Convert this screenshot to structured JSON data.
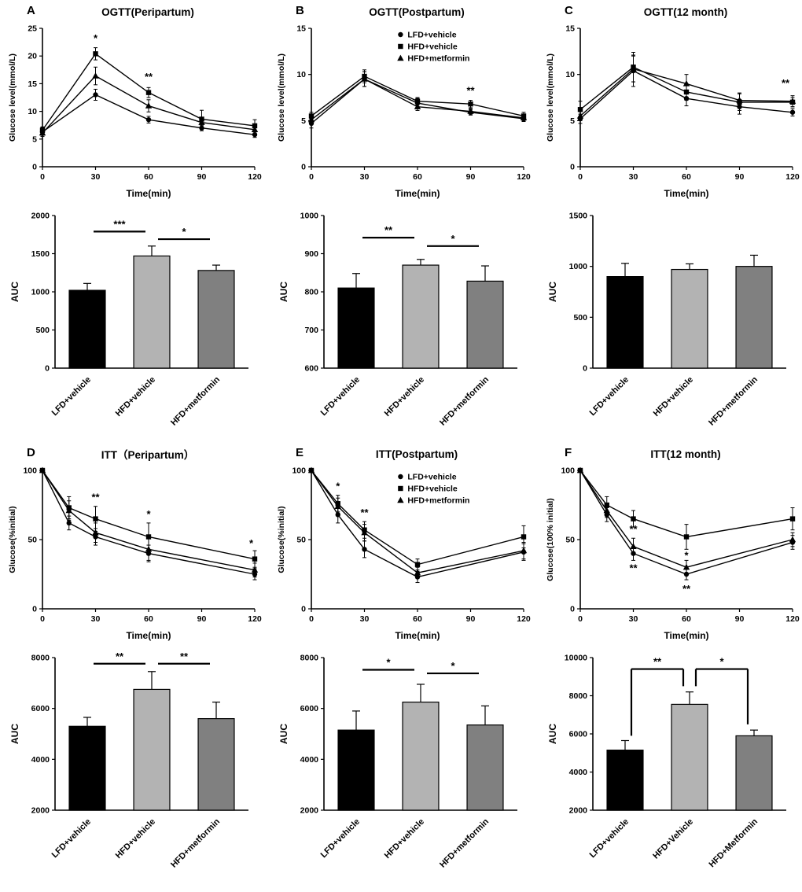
{
  "figure": {
    "background": "#ffffff",
    "line_color": "#000000"
  },
  "bar_colors": [
    "#000000",
    "#b3b3b3",
    "#808080"
  ],
  "chart_data": [
    {
      "panel": "A",
      "title": "OGTT(Peripartum)",
      "line": {
        "type": "line",
        "x": [
          0,
          30,
          60,
          90,
          120
        ],
        "xlim": [
          0,
          120
        ],
        "xticks": [
          0,
          30,
          60,
          90,
          120
        ],
        "xlabel": "Time(min)",
        "ylabel": "Glucose level(mmol/L)",
        "ylim": [
          0,
          25
        ],
        "yticks": [
          0,
          5,
          10,
          15,
          20,
          25
        ],
        "legend": false,
        "series": [
          {
            "name": "LFD+vehicle",
            "marker": "circle",
            "values": [
              6.3,
              13.0,
              8.5,
              7.0,
              5.8
            ],
            "errors": [
              0.8,
              1.0,
              0.6,
              0.5,
              0.5
            ]
          },
          {
            "name": "HFD+vehicle",
            "marker": "square",
            "values": [
              6.6,
              20.4,
              13.4,
              8.6,
              7.4
            ],
            "errors": [
              0.6,
              1.1,
              0.9,
              1.6,
              1.1
            ]
          },
          {
            "name": "HFD+metformin",
            "marker": "triangle",
            "values": [
              6.1,
              16.4,
              11.0,
              8.0,
              6.7
            ],
            "errors": [
              0.6,
              1.6,
              1.1,
              0.9,
              0.8
            ]
          }
        ],
        "annotations": [
          {
            "x": 30,
            "y": 22.6,
            "text": "*"
          },
          {
            "x": 60,
            "y": 15.6,
            "text": "**"
          }
        ]
      },
      "bar": {
        "type": "bar",
        "categories": [
          "LFD+vehicle",
          "HFD+vehicle",
          "HFD+metformin"
        ],
        "values": [
          1020,
          1470,
          1280
        ],
        "errors": [
          90,
          130,
          70
        ],
        "ylabel": "AUC",
        "ylim": [
          0,
          2000
        ],
        "yticks": [
          0,
          500,
          1000,
          1500,
          2000
        ],
        "sig": [
          {
            "from": 0,
            "to": 1,
            "y": 1790,
            "label": "***"
          },
          {
            "from": 1,
            "to": 2,
            "y": 1690,
            "label": "*"
          }
        ]
      }
    },
    {
      "panel": "B",
      "title": "OGTT(Postpartum)",
      "line": {
        "type": "line",
        "x": [
          0,
          30,
          60,
          90,
          120
        ],
        "xlim": [
          0,
          120
        ],
        "xticks": [
          0,
          30,
          60,
          90,
          120
        ],
        "xlabel": "Time(min)",
        "ylabel": "Glucose level(mmol/L)",
        "ylim": [
          0,
          15
        ],
        "yticks": [
          0,
          5,
          10,
          15
        ],
        "legend": true,
        "series": [
          {
            "name": "LFD+vehicle",
            "marker": "circle",
            "values": [
              4.7,
              9.5,
              6.9,
              5.9,
              5.2
            ],
            "errors": [
              0.5,
              0.8,
              0.5,
              0.3,
              0.3
            ]
          },
          {
            "name": "HFD+vehicle",
            "marker": "square",
            "values": [
              5.5,
              9.8,
              7.1,
              6.8,
              5.5
            ],
            "errors": [
              0.4,
              0.7,
              0.4,
              0.4,
              0.4
            ]
          },
          {
            "name": "HFD+metformin",
            "marker": "triangle",
            "values": [
              5.1,
              9.5,
              6.5,
              6.0,
              5.3
            ],
            "errors": [
              0.4,
              0.8,
              0.4,
              0.3,
              0.3
            ]
          }
        ],
        "annotations": [
          {
            "x": 90,
            "y": 7.9,
            "text": "**"
          }
        ]
      },
      "bar": {
        "type": "bar",
        "categories": [
          "LFD+vehicle",
          "HFD+vehicle",
          "HFD+metformin"
        ],
        "values": [
          810,
          870,
          828
        ],
        "errors": [
          38,
          15,
          40
        ],
        "ylabel": "AUC",
        "ylim": [
          600,
          1000
        ],
        "yticks": [
          600,
          700,
          800,
          900,
          1000
        ],
        "sig": [
          {
            "from": 0,
            "to": 1,
            "y": 942,
            "label": "**"
          },
          {
            "from": 1,
            "to": 2,
            "y": 920,
            "label": "*"
          }
        ]
      }
    },
    {
      "panel": "C",
      "title": "OGTT(12 month)",
      "line": {
        "type": "line",
        "x": [
          0,
          30,
          60,
          90,
          120
        ],
        "xlim": [
          0,
          120
        ],
        "xticks": [
          0,
          30,
          60,
          90,
          120
        ],
        "xlabel": "Time(min)",
        "ylabel": "Glucose level(mmol/L)",
        "ylim": [
          0,
          15
        ],
        "yticks": [
          0,
          5,
          10,
          15
        ],
        "legend": false,
        "series": [
          {
            "name": "LFD+vehicle",
            "marker": "circle",
            "values": [
              5.2,
              10.4,
              7.4,
              6.5,
              5.9
            ],
            "errors": [
              0.5,
              1.7,
              0.8,
              0.8,
              0.4
            ]
          },
          {
            "name": "HFD+vehicle",
            "marker": "square",
            "values": [
              6.2,
              10.8,
              8.1,
              7.0,
              7.0
            ],
            "errors": [
              0.9,
              1.6,
              0.9,
              0.9,
              0.5
            ]
          },
          {
            "name": "HFD+metformin",
            "marker": "triangle",
            "values": [
              5.5,
              10.6,
              9.0,
              7.2,
              7.1
            ],
            "errors": [
              0.5,
              1.4,
              1.0,
              0.8,
              0.6
            ]
          }
        ],
        "annotations": [
          {
            "x": 116,
            "y": 8.7,
            "text": "**"
          }
        ]
      },
      "bar": {
        "type": "bar",
        "categories": [
          "LFD+vehicle",
          "HFD+vehicle",
          "HFD+metformin"
        ],
        "values": [
          900,
          970,
          1000
        ],
        "errors": [
          130,
          55,
          110
        ],
        "ylabel": "AUC",
        "ylim": [
          0,
          1500
        ],
        "yticks": [
          0,
          500,
          1000,
          1500
        ],
        "sig": []
      }
    },
    {
      "panel": "D",
      "title": "ITT（Peripartum）",
      "line": {
        "type": "line",
        "x": [
          0,
          15,
          30,
          60,
          120
        ],
        "xlim": [
          0,
          120
        ],
        "xticks": [
          0,
          30,
          60,
          90,
          120
        ],
        "xlabel": "Time(min)",
        "ylabel": "Glucose(%initial)",
        "ylim": [
          0,
          100
        ],
        "yticks": [
          0,
          50,
          100
        ],
        "legend": false,
        "series": [
          {
            "name": "LFD+vehicle",
            "marker": "circle",
            "values": [
              100,
              62,
              52,
              40,
              25
            ],
            "errors": [
              0,
              5,
              6,
              6,
              4
            ]
          },
          {
            "name": "HFD+vehicle",
            "marker": "square",
            "values": [
              100,
              73,
              65,
              52,
              36
            ],
            "errors": [
              0,
              8,
              9,
              10,
              6
            ]
          },
          {
            "name": "HFD+metformin",
            "marker": "triangle",
            "values": [
              100,
              71,
              55,
              43,
              28
            ],
            "errors": [
              0,
              7,
              7,
              8,
              5
            ]
          }
        ],
        "annotations": [
          {
            "x": 30,
            "y": 78,
            "text": "**"
          },
          {
            "x": 60,
            "y": 66,
            "text": "*"
          },
          {
            "x": 118,
            "y": 45,
            "text": "*"
          }
        ]
      },
      "bar": {
        "type": "bar",
        "categories": [
          "LFD+vehicle",
          "HFD+vehicle",
          "HFD+metformin"
        ],
        "values": [
          5300,
          6750,
          5600
        ],
        "errors": [
          350,
          700,
          650
        ],
        "ylabel": "AUC",
        "ylim": [
          2000,
          8000
        ],
        "yticks": [
          2000,
          4000,
          6000,
          8000
        ],
        "sig": [
          {
            "from": 0,
            "to": 1,
            "y": 7760,
            "label": "**"
          },
          {
            "from": 1,
            "to": 2,
            "y": 7760,
            "label": "**"
          }
        ]
      }
    },
    {
      "panel": "E",
      "title": "ITT(Postpartum)",
      "line": {
        "type": "line",
        "x": [
          0,
          15,
          30,
          60,
          120
        ],
        "xlim": [
          0,
          120
        ],
        "xticks": [
          0,
          30,
          60,
          90,
          120
        ],
        "xlabel": "Time(min)",
        "ylabel": "Glucose(%initial)",
        "ylim": [
          0,
          100
        ],
        "yticks": [
          0,
          50,
          100
        ],
        "legend": true,
        "series": [
          {
            "name": "LFD+vehicle",
            "marker": "circle",
            "values": [
              100,
              68,
              43,
              23,
              41
            ],
            "errors": [
              0,
              6,
              6,
              4,
              6
            ]
          },
          {
            "name": "HFD+vehicle",
            "marker": "square",
            "values": [
              100,
              76,
              57,
              32,
              52
            ],
            "errors": [
              0,
              6,
              6,
              4,
              8
            ]
          },
          {
            "name": "HFD+metformin",
            "marker": "triangle",
            "values": [
              100,
              74,
              55,
              26,
              42
            ],
            "errors": [
              0,
              6,
              6,
              4,
              6
            ]
          }
        ],
        "annotations": [
          {
            "x": 15,
            "y": 86,
            "text": "*"
          },
          {
            "x": 30,
            "y": 67,
            "text": "**"
          }
        ]
      },
      "bar": {
        "type": "bar",
        "categories": [
          "LFD+vehicle",
          "HFD+vehicle",
          "HFD+metformin"
        ],
        "values": [
          5150,
          6250,
          5350
        ],
        "errors": [
          750,
          700,
          750
        ],
        "ylabel": "AUC",
        "ylim": [
          2000,
          8000
        ],
        "yticks": [
          2000,
          4000,
          6000,
          8000
        ],
        "sig": [
          {
            "from": 0,
            "to": 1,
            "y": 7520,
            "label": "*"
          },
          {
            "from": 1,
            "to": 2,
            "y": 7380,
            "label": "*"
          }
        ]
      }
    },
    {
      "panel": "F",
      "title": "ITT(12 month)",
      "line": {
        "type": "line",
        "x": [
          0,
          15,
          30,
          60,
          120
        ],
        "xlim": [
          0,
          120
        ],
        "xticks": [
          0,
          30,
          60,
          90,
          120
        ],
        "xlabel": "Time(min)",
        "ylabel": "Glucose(100% initial)",
        "ylim": [
          0,
          100
        ],
        "yticks": [
          0,
          50,
          100
        ],
        "legend": false,
        "series": [
          {
            "name": "LFD+vehicle",
            "marker": "circle",
            "values": [
              100,
              68,
              40,
              25,
              48
            ],
            "errors": [
              0,
              5,
              5,
              4,
              5
            ]
          },
          {
            "name": "HFD+vehicle",
            "marker": "square",
            "values": [
              100,
              75,
              65,
              52,
              65
            ],
            "errors": [
              0,
              6,
              6,
              9,
              8
            ]
          },
          {
            "name": "HFD+metformin",
            "marker": "triangle",
            "values": [
              100,
              71,
              45,
              30,
              50
            ],
            "errors": [
              0,
              5,
              6,
              5,
              5
            ]
          }
        ],
        "annotations": [
          {
            "x": 30,
            "y": 55,
            "text": "**"
          },
          {
            "x": 30,
            "y": 27,
            "text": "**"
          },
          {
            "x": 60,
            "y": 36,
            "text": "*"
          },
          {
            "x": 60,
            "y": 12,
            "text": "**"
          }
        ]
      },
      "bar": {
        "type": "bar",
        "categories": [
          "LFD+vehicle",
          "HFD+Vehicle",
          "HFD+Metformin"
        ],
        "values": [
          5150,
          7550,
          5900
        ],
        "errors": [
          500,
          650,
          300
        ],
        "ylabel": "AUC",
        "ylim": [
          2000,
          10000
        ],
        "yticks": [
          2000,
          4000,
          6000,
          8000,
          10000
        ],
        "sig": [
          {
            "from": 0,
            "to": 1,
            "y": 9400,
            "label": "**",
            "drops": [
              3500,
              900
            ]
          },
          {
            "from": 1,
            "to": 2,
            "y": 9400,
            "label": "*",
            "drops": [
              900,
              2900
            ]
          }
        ]
      }
    }
  ]
}
